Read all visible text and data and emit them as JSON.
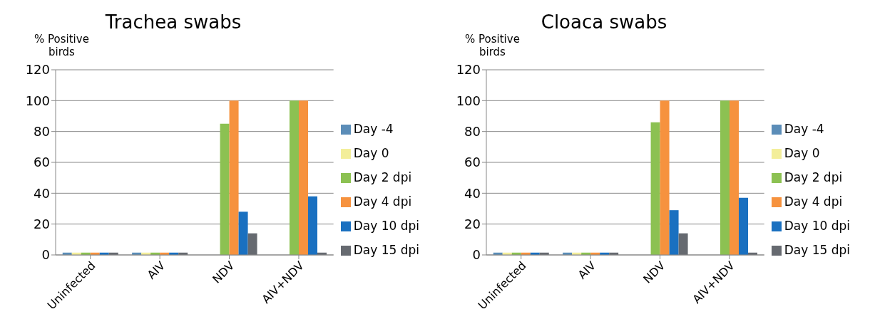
{
  "chart_data": [
    {
      "type": "bar",
      "title": "Trachea swabs",
      "ylabel": "% Positive birds",
      "categories": [
        "Uninfected",
        "AIV",
        "NDV",
        "AIV+NDV"
      ],
      "ylim": [
        0,
        120
      ],
      "yticks": [
        0,
        20,
        40,
        60,
        80,
        100,
        120
      ],
      "grid": "y",
      "legend": "right",
      "series": [
        {
          "name": "Day -4",
          "color": "#5b8db8",
          "values": [
            1.5,
            1.5,
            0,
            0
          ]
        },
        {
          "name": "Day 0",
          "color": "#f3ee9a",
          "values": [
            1.5,
            1.5,
            null,
            null
          ]
        },
        {
          "name": "Day 2 dpi",
          "color": "#8cc152",
          "values": [
            1.5,
            1.5,
            85,
            100
          ]
        },
        {
          "name": "Day 4 dpi",
          "color": "#f6923e",
          "values": [
            1.5,
            1.5,
            100,
            100
          ]
        },
        {
          "name": "Day 10 dpi",
          "color": "#1a70c0",
          "values": [
            1.5,
            1.5,
            28,
            38
          ]
        },
        {
          "name": "Day 15 dpi",
          "color": "#666a70",
          "values": [
            1.5,
            1.5,
            14,
            1.5
          ]
        }
      ]
    },
    {
      "type": "bar",
      "title": "Cloaca swabs",
      "ylabel": "% Positive birds",
      "categories": [
        "Uninfected",
        "AIV",
        "NDV",
        "AIV+NDV"
      ],
      "ylim": [
        0,
        120
      ],
      "yticks": [
        0,
        20,
        40,
        60,
        80,
        100,
        120
      ],
      "grid": "y",
      "legend": "right",
      "series": [
        {
          "name": "Day -4",
          "color": "#5b8db8",
          "values": [
            1.5,
            1.5,
            0,
            0
          ]
        },
        {
          "name": "Day 0",
          "color": "#f3ee9a",
          "values": [
            1.5,
            1.5,
            null,
            null
          ]
        },
        {
          "name": "Day 2 dpi",
          "color": "#8cc152",
          "values": [
            1.5,
            1.5,
            86,
            100
          ]
        },
        {
          "name": "Day 4 dpi",
          "color": "#f6923e",
          "values": [
            1.5,
            1.5,
            100,
            100
          ]
        },
        {
          "name": "Day 10 dpi",
          "color": "#1a70c0",
          "values": [
            1.5,
            1.5,
            29,
            37
          ]
        },
        {
          "name": "Day 15 dpi",
          "color": "#666a70",
          "values": [
            1.5,
            1.5,
            14,
            1.5
          ]
        }
      ]
    }
  ]
}
